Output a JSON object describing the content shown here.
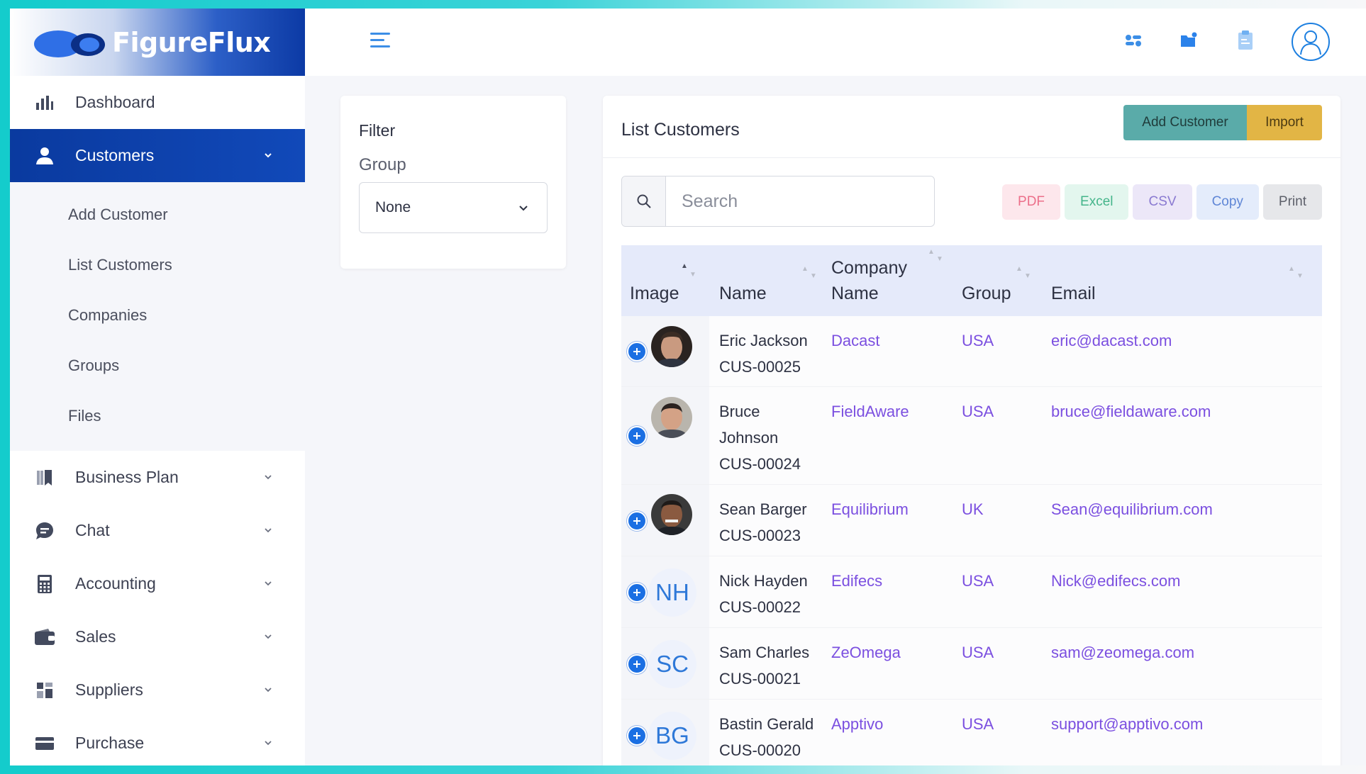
{
  "brand": {
    "name": "FigureFlux"
  },
  "sidebar": {
    "items": [
      {
        "label": "Dashboard",
        "icon": "bar-chart-icon"
      },
      {
        "label": "Customers",
        "icon": "user-icon",
        "active": true
      },
      {
        "label": "Business Plan",
        "icon": "book-icon"
      },
      {
        "label": "Chat",
        "icon": "chat-icon"
      },
      {
        "label": "Accounting",
        "icon": "calculator-icon"
      },
      {
        "label": "Sales",
        "icon": "wallet-icon"
      },
      {
        "label": "Suppliers",
        "icon": "grid-icon"
      },
      {
        "label": "Purchase",
        "icon": "card-icon"
      }
    ],
    "submenu": [
      "Add Customer",
      "List Customers",
      "Companies",
      "Groups",
      "Files"
    ]
  },
  "filter": {
    "title": "Filter",
    "group_label": "Group",
    "group_value": "None"
  },
  "list": {
    "title": "List Customers",
    "add_button": "Add Customer",
    "import_button": "Import",
    "search_placeholder": "Search",
    "exports": [
      "PDF",
      "Excel",
      "CSV",
      "Copy",
      "Print"
    ],
    "columns": [
      "Image",
      "Name",
      "Company Name",
      "Group",
      "Email"
    ],
    "rows": [
      {
        "name": "Eric Jackson",
        "id": "CUS-00025",
        "company": "Dacast",
        "group": "USA",
        "email": "eric@dacast.com",
        "photo": true
      },
      {
        "name": "Bruce Johnson",
        "id": "CUS-00024",
        "company": "FieldAware",
        "group": "USA",
        "email": "bruce@fieldaware.com",
        "photo": true
      },
      {
        "name": "Sean Barger",
        "id": "CUS-00023",
        "company": "Equilibrium",
        "group": "UK",
        "email": "Sean@equilibrium.com",
        "photo": true
      },
      {
        "name": "Nick Hayden",
        "id": "CUS-00022",
        "company": "Edifecs",
        "group": "USA",
        "email": "Nick@edifecs.com",
        "initials": "NH"
      },
      {
        "name": "Sam Charles",
        "id": "CUS-00021",
        "company": "ZeOmega",
        "group": "USA",
        "email": "sam@zeomega.com",
        "initials": "SC"
      },
      {
        "name": "Bastin Gerald",
        "id": "CUS-00020",
        "company": "Apptivo",
        "group": "USA",
        "email": "support@apptivo.com",
        "initials": "BG"
      }
    ]
  },
  "colors": {
    "accent": "#0c3aa5",
    "link": "#7b4fe0",
    "add_button": "#5aaba9",
    "import_button": "#e2b545"
  }
}
